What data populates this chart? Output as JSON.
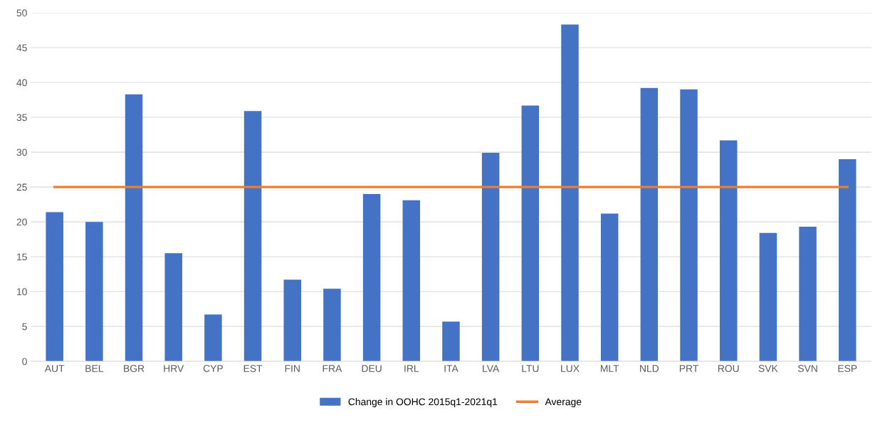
{
  "chart_data": {
    "type": "bar",
    "categories": [
      "AUT",
      "BEL",
      "BGR",
      "HRV",
      "CYP",
      "EST",
      "FIN",
      "FRA",
      "DEU",
      "IRL",
      "ITA",
      "LVA",
      "LTU",
      "LUX",
      "MLT",
      "NLD",
      "PRT",
      "ROU",
      "SVK",
      "SVN",
      "ESP"
    ],
    "series": [
      {
        "name": "Change in OOHC 2015q1-2021q1",
        "color": "#4472c4",
        "values": [
          21.4,
          20.0,
          38.3,
          15.5,
          6.7,
          35.9,
          11.7,
          10.4,
          24.0,
          23.1,
          5.7,
          29.9,
          36.7,
          48.3,
          21.2,
          39.2,
          39.0,
          31.7,
          18.4,
          19.3,
          29.0
        ]
      },
      {
        "name": "Average",
        "type": "line",
        "color": "#ed7d31",
        "values": [
          25,
          25,
          25,
          25,
          25,
          25,
          25,
          25,
          25,
          25,
          25,
          25,
          25,
          25,
          25,
          25,
          25,
          25,
          25,
          25,
          25
        ]
      }
    ],
    "ylim": [
      0,
      50
    ],
    "yticks": [
      0,
      5,
      10,
      15,
      20,
      25,
      30,
      35,
      40,
      45,
      50
    ],
    "grid": "y",
    "legend": "bottom",
    "marker": "none"
  }
}
